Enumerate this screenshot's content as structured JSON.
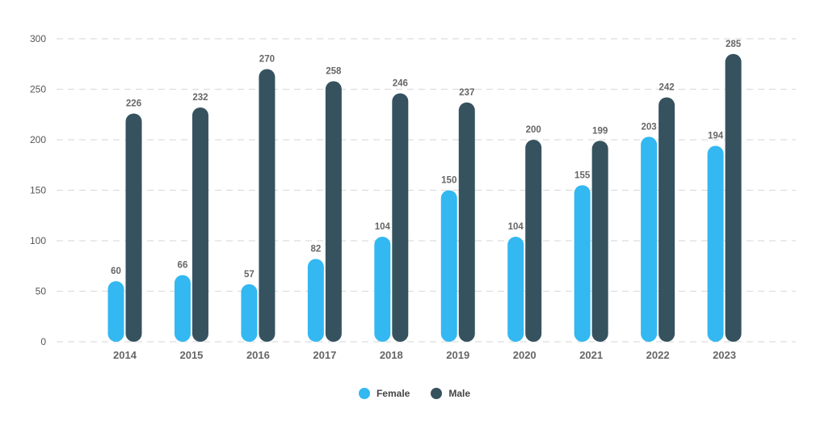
{
  "chart_data": {
    "type": "bar",
    "categories": [
      "2014",
      "2015",
      "2016",
      "2017",
      "2018",
      "2019",
      "2020",
      "2021",
      "2022",
      "2023"
    ],
    "series": [
      {
        "name": "Female",
        "color": "#33b8f1",
        "values": [
          60,
          66,
          57,
          82,
          104,
          150,
          104,
          155,
          203,
          194
        ]
      },
      {
        "name": "Male",
        "color": "#36525f",
        "values": [
          226,
          232,
          270,
          258,
          246,
          237,
          200,
          199,
          242,
          285
        ]
      }
    ],
    "ylim": [
      0,
      300
    ],
    "yticks": [
      "0",
      "50",
      "100",
      "150",
      "200",
      "250",
      "300"
    ],
    "grid": true,
    "legend_position": "bottom-center",
    "data_labels": true
  }
}
